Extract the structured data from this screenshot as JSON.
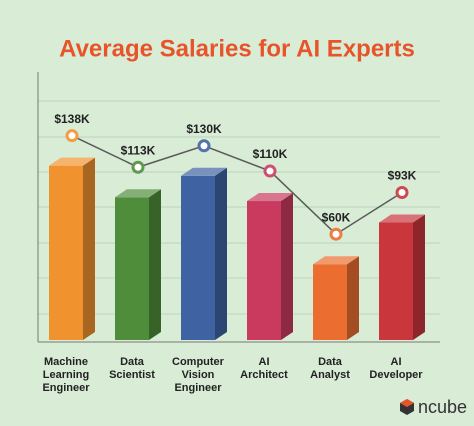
{
  "chart_data": {
    "type": "bar3d-line",
    "title": "Average Salaries for AI Experts",
    "categories": [
      [
        "Machine",
        "Learning",
        "Engineer"
      ],
      [
        "Data",
        "Scientist"
      ],
      [
        "Computer",
        "Vision",
        "Engineer"
      ],
      [
        "AI",
        "Architect"
      ],
      [
        "Data",
        "Analyst"
      ],
      [
        "AI",
        "Developer"
      ]
    ],
    "values": [
      138,
      113,
      130,
      110,
      60,
      93
    ],
    "value_labels": [
      "$138K",
      "$113K",
      "$130K",
      "$110K",
      "$60K",
      "$93K"
    ],
    "colors": [
      "#f0922e",
      "#4f8d3b",
      "#3f62a3",
      "#c93a5e",
      "#eb6e30",
      "#c9363c"
    ],
    "line_color": "#5a5a5a",
    "ylim": [
      0,
      190
    ]
  },
  "brand": "ncube"
}
